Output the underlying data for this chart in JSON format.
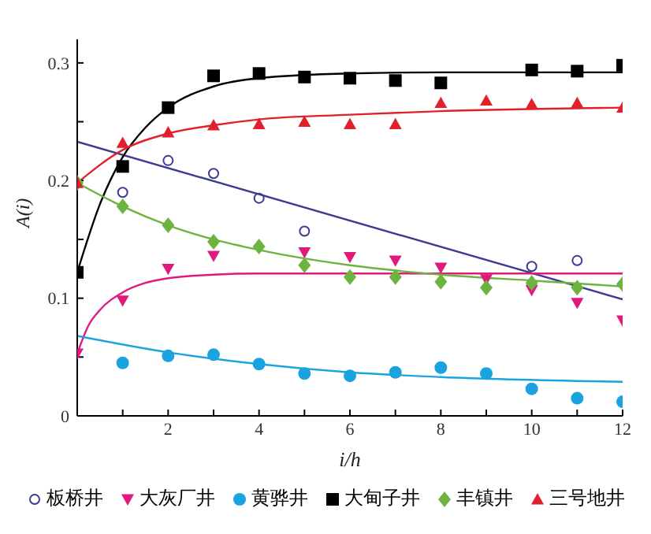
{
  "chart_data": {
    "type": "scatter",
    "xlabel": "i/h",
    "ylabel": "A(i)",
    "xlim": [
      0,
      12
    ],
    "ylim": [
      0,
      0.32
    ],
    "xticks": [
      {
        "value": 0,
        "label": null
      },
      {
        "value": 1,
        "label": null
      },
      2,
      {
        "value": 3,
        "label": null
      },
      4,
      {
        "value": 5,
        "label": null
      },
      6,
      {
        "value": 7,
        "label": null
      },
      8,
      {
        "value": 9,
        "label": null
      },
      10,
      {
        "value": 11,
        "label": null
      },
      12
    ],
    "yticks": [
      0,
      {
        "value": 0.05,
        "label": null
      },
      0.1,
      {
        "value": 0.15,
        "label": null
      },
      0.2,
      {
        "value": 0.25,
        "label": null
      },
      0.3
    ],
    "grid": false,
    "legend": "bottom",
    "series": [
      {
        "name": "板桥井",
        "color": "#3b3b8f",
        "marker": "open_circle",
        "x": [
          1,
          2,
          3,
          4,
          5,
          10,
          11
        ],
        "values": [
          0.19,
          0.217,
          0.206,
          0.185,
          0.157,
          0.127,
          0.132
        ]
      },
      {
        "name": "大灰厂井",
        "color": "#e0197d",
        "marker": "triangle_down",
        "x": [
          0,
          1,
          2,
          3,
          4,
          5,
          6,
          7,
          8,
          9,
          10,
          11,
          12
        ],
        "values": [
          0.053,
          0.098,
          0.125,
          0.136,
          null,
          0.139,
          0.135,
          0.132,
          0.126,
          0.116,
          0.107,
          0.096,
          0.081
        ]
      },
      {
        "name": "黄骅井",
        "color": "#1ba3e0",
        "marker": "circle",
        "x": [
          1,
          2,
          3,
          4,
          5,
          6,
          7,
          8,
          9,
          10,
          11,
          12
        ],
        "values": [
          0.045,
          0.051,
          0.052,
          0.044,
          0.036,
          0.034,
          0.037,
          0.041,
          0.036,
          0.023,
          0.015,
          0.012
        ]
      },
      {
        "name": "大甸子井",
        "color": "#000000",
        "marker": "square",
        "x": [
          0,
          1,
          2,
          3,
          4,
          5,
          6,
          7,
          8,
          10,
          11,
          12
        ],
        "values": [
          0.122,
          0.212,
          0.262,
          0.289,
          0.291,
          0.288,
          0.287,
          0.285,
          0.283,
          0.294,
          0.293,
          0.298
        ]
      },
      {
        "name": "丰镇井",
        "color": "#6db33f",
        "marker": "diamond",
        "x": [
          0,
          1,
          2,
          3,
          4,
          5,
          6,
          7,
          8,
          9,
          10,
          11,
          12
        ],
        "values": [
          0.198,
          0.178,
          0.162,
          0.148,
          0.144,
          0.128,
          0.118,
          0.118,
          0.114,
          0.109,
          0.113,
          0.109,
          0.112
        ]
      },
      {
        "name": "三号地井",
        "color": "#e0202a",
        "marker": "triangle",
        "x": [
          0,
          1,
          2,
          3,
          4,
          5,
          6,
          7,
          8,
          9,
          10,
          11,
          12
        ],
        "values": [
          0.198,
          0.232,
          0.241,
          0.247,
          0.248,
          0.25,
          0.248,
          0.248,
          0.266,
          0.268,
          0.265,
          0.266,
          0.262
        ]
      },
      {
        "type": "line",
        "color": "#3b3b8f",
        "x": [
          0,
          12
        ],
        "values": [
          0.233,
          0.099
        ]
      },
      {
        "type": "line",
        "color": "#e0197d",
        "x": [
          0,
          0.25,
          0.5,
          1,
          1.5,
          2,
          3,
          4,
          6,
          12
        ],
        "values": [
          0.053,
          0.077,
          0.09,
          0.105,
          0.113,
          0.117,
          0.12,
          0.121,
          0.121,
          0.121
        ]
      },
      {
        "type": "line",
        "color": "#1ba3e0",
        "x": [
          0,
          2,
          4,
          6,
          8,
          12
        ],
        "values": [
          0.068,
          0.054,
          0.044,
          0.037,
          0.033,
          0.029
        ]
      },
      {
        "type": "line",
        "color": "#000000",
        "x": [
          0,
          0.5,
          1,
          1.5,
          2,
          3,
          4,
          6,
          8,
          12
        ],
        "values": [
          0.122,
          0.18,
          0.22,
          0.245,
          0.262,
          0.28,
          0.287,
          0.291,
          0.292,
          0.292
        ]
      },
      {
        "type": "line",
        "color": "#6db33f",
        "x": [
          0,
          1,
          2,
          3,
          4,
          6,
          8,
          10,
          12
        ],
        "values": [
          0.198,
          0.178,
          0.162,
          0.15,
          0.141,
          0.128,
          0.12,
          0.115,
          0.11
        ]
      },
      {
        "type": "line",
        "color": "#e0202a",
        "x": [
          0,
          1,
          2,
          3,
          4,
          6,
          8,
          12
        ],
        "values": [
          0.198,
          0.226,
          0.24,
          0.247,
          0.252,
          0.256,
          0.259,
          0.262
        ]
      }
    ]
  }
}
